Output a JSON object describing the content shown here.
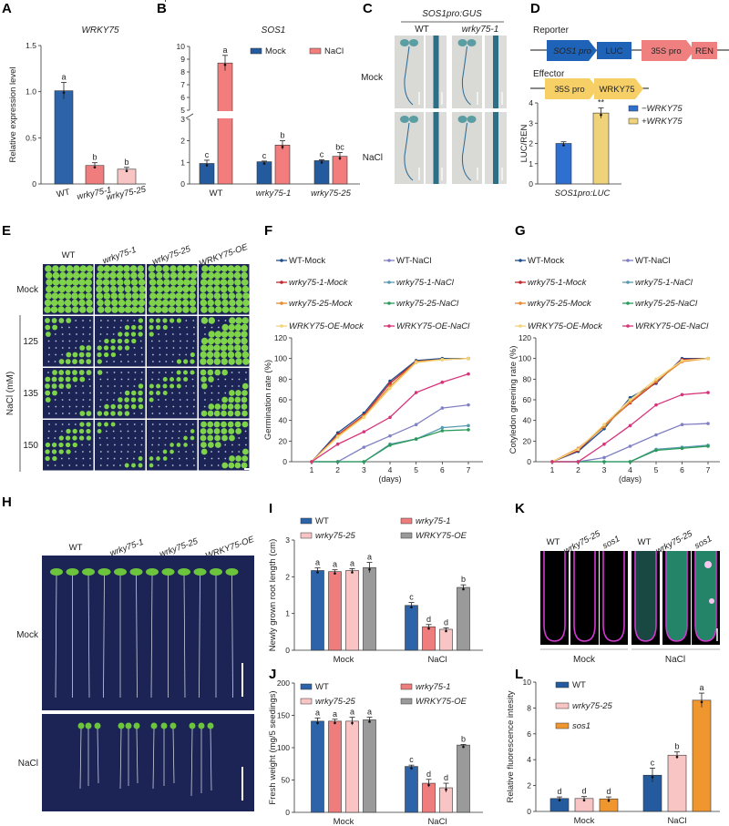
{
  "panel_labels": [
    "A",
    "B",
    "C",
    "D",
    "E",
    "F",
    "G",
    "H",
    "I",
    "J",
    "K",
    "L"
  ],
  "panel_c": {
    "title": "SOS1pro:GUS",
    "columns": [
      "WT",
      "wrky75-1"
    ],
    "rows": [
      "Mock",
      "NaCl"
    ]
  },
  "panel_d": {
    "reporter_label": "Reporter",
    "effector_label": "Effector",
    "reporter_parts": [
      "SOS1 pro",
      "LUC",
      "35S pro",
      "REN"
    ],
    "effector_parts": [
      "35S pro",
      "WRKY75"
    ]
  },
  "panel_e": {
    "columns": [
      "WT",
      "wrky75-1",
      "wrky75-25",
      "WRKY75-OE"
    ],
    "rows": [
      "Mock",
      "125",
      "135",
      "150"
    ],
    "axis_label": "NaCl (mM)"
  },
  "panel_h": {
    "columns": [
      "WT",
      "wrky75-1",
      "wrky75-25",
      "WRKY75-OE"
    ],
    "rows": [
      "Mock",
      "NaCl"
    ]
  },
  "panel_k": {
    "columns": [
      "WT",
      "wrky75-25",
      "sos1"
    ],
    "groups": [
      "Mock",
      "NaCl"
    ]
  },
  "chart_data": [
    {
      "id": "A",
      "type": "bar",
      "title": "WRKY75",
      "xlabel": "",
      "ylabel": "Relative expression level",
      "ylim": [
        0,
        1.5
      ],
      "yticks": [
        0,
        0.5,
        1.0,
        1.5
      ],
      "ytick_labels": [
        "0",
        "0.5",
        "1.0",
        "1.5"
      ],
      "categories": [
        "WT",
        "wrky75-1",
        "wrky75-25"
      ],
      "series": [
        {
          "name": "",
          "values": [
            1.01,
            0.2,
            0.16
          ],
          "errors": [
            0.09,
            0.03,
            0.02
          ],
          "letters": [
            "a",
            "b",
            "b"
          ],
          "colors": [
            "#2d63a8",
            "#f07d7d",
            "#f8c4c4"
          ]
        }
      ]
    },
    {
      "id": "B",
      "type": "bar",
      "title": "SOS1",
      "xlabel": "",
      "ylabel": "Relative expression level",
      "ylim": [
        0,
        10
      ],
      "axis_break": [
        3,
        5
      ],
      "yticks": [
        0,
        1,
        2,
        3,
        5,
        6,
        7,
        8,
        9,
        10
      ],
      "ytick_labels": [
        "0",
        "1",
        "2",
        "3",
        "5",
        "6",
        "7",
        "8",
        "9",
        "10"
      ],
      "categories": [
        "WT",
        "wrky75-1",
        "wrky75-25"
      ],
      "legend": "top-right",
      "series": [
        {
          "name": "Mock",
          "color": "#245a9e",
          "values": [
            0.95,
            1.03,
            1.08
          ],
          "errors": [
            0.15,
            0.03,
            0.04
          ],
          "letters": [
            "c",
            "c",
            "c"
          ]
        },
        {
          "name": "NaCl",
          "color": "#f37c7c",
          "values": [
            8.7,
            1.8,
            1.28
          ],
          "errors": [
            0.6,
            0.2,
            0.18
          ],
          "letters": [
            "a",
            "b",
            "bc"
          ]
        }
      ]
    },
    {
      "id": "D",
      "type": "bar",
      "title": "",
      "xlabel": "",
      "ylabel": "LUC/REN",
      "ylim": [
        0,
        4
      ],
      "yticks": [
        0,
        1,
        2,
        3,
        4
      ],
      "ytick_labels": [
        "0",
        "1",
        "2",
        "3",
        "4"
      ],
      "categories": [
        "SOS1pro:LUC"
      ],
      "legend": "right",
      "series": [
        {
          "name": "−WRKY75",
          "color": "#2f6fd0",
          "values": [
            2.0
          ],
          "errors": [
            0.08
          ],
          "letters": [
            ""
          ]
        },
        {
          "name": "+WRKY75",
          "color": "#efd27a",
          "values": [
            3.5
          ],
          "errors": [
            0.25
          ],
          "letters": [
            "**"
          ]
        }
      ]
    },
    {
      "id": "F",
      "type": "line",
      "title": "",
      "xlabel": "(days)",
      "ylabel": "Germination rate (%)",
      "x": [
        1,
        2,
        3,
        4,
        5,
        6,
        7
      ],
      "ylim": [
        0,
        120
      ],
      "yticks": [
        0,
        20,
        40,
        60,
        80,
        100,
        120
      ],
      "legend": "top",
      "series": [
        {
          "name": "WT-Mock",
          "color": "#1f4e8c",
          "values": [
            0,
            28,
            47,
            78,
            98,
            100,
            100
          ]
        },
        {
          "name": "WT-NaCl",
          "color": "#8080c4",
          "values": [
            0,
            0,
            14,
            25,
            36,
            52,
            55
          ]
        },
        {
          "name": "wrky75-1-Mock",
          "color": "#c0272d",
          "values": [
            0,
            26,
            45,
            76,
            97,
            99,
            100
          ]
        },
        {
          "name": "wrky75-1-NaCl",
          "color": "#5a9ab0",
          "values": [
            0,
            0,
            0,
            17,
            22,
            33,
            35
          ]
        },
        {
          "name": "wrky75-25-Mock",
          "color": "#e88a2e",
          "values": [
            0,
            25,
            44,
            73,
            97,
            99,
            100
          ]
        },
        {
          "name": "wrky75-25-NaCl",
          "color": "#2a9a5a",
          "values": [
            0,
            0,
            0,
            16,
            22,
            30,
            31
          ]
        },
        {
          "name": "WRKY75-OE-Mock",
          "color": "#f2d479",
          "values": [
            0,
            24,
            43,
            71,
            96,
            99,
            100
          ]
        },
        {
          "name": "WRKY75-OE-NaCl",
          "color": "#d6337a",
          "values": [
            0,
            17,
            29,
            43,
            67,
            77,
            85
          ]
        }
      ]
    },
    {
      "id": "G",
      "type": "line",
      "title": "",
      "xlabel": "(days)",
      "ylabel": "Cotyledon greening rate (%)",
      "x": [
        1,
        2,
        3,
        4,
        5,
        6,
        7
      ],
      "ylim": [
        0,
        120
      ],
      "yticks": [
        0,
        20,
        40,
        60,
        80,
        100,
        120
      ],
      "legend": "top",
      "series": [
        {
          "name": "WT-Mock",
          "color": "#1f4e8c",
          "values": [
            0,
            10,
            32,
            62,
            76,
            100,
            100
          ]
        },
        {
          "name": "WT-NaCl",
          "color": "#8080c4",
          "values": [
            0,
            0,
            4,
            15,
            26,
            36,
            37
          ]
        },
        {
          "name": "wrky75-1-Mock",
          "color": "#c0272d",
          "values": [
            0,
            11,
            35,
            57,
            77,
            99,
            100
          ]
        },
        {
          "name": "wrky75-1-NaCl",
          "color": "#5a9ab0",
          "values": [
            0,
            0,
            0,
            0,
            12,
            14,
            16
          ]
        },
        {
          "name": "wrky75-25-Mock",
          "color": "#e88a2e",
          "values": [
            0,
            13,
            34,
            58,
            78,
            97,
            100
          ]
        },
        {
          "name": "wrky75-25-NaCl",
          "color": "#2a9a5a",
          "values": [
            0,
            0,
            0,
            0,
            11,
            13,
            15
          ]
        },
        {
          "name": "WRKY75-OE-Mock",
          "color": "#f2d479",
          "values": [
            0,
            12,
            36,
            60,
            80,
            98,
            100
          ]
        },
        {
          "name": "WRKY75-OE-NaCl",
          "color": "#d6337a",
          "values": [
            0,
            0,
            17,
            35,
            55,
            65,
            67
          ]
        }
      ]
    },
    {
      "id": "I",
      "type": "bar",
      "title": "",
      "xlabel": "",
      "ylabel": "Newly grown root length (cm)",
      "ylim": [
        0,
        3
      ],
      "yticks": [
        0,
        1,
        2,
        3
      ],
      "ytick_labels": [
        "0",
        "1",
        "2",
        "3"
      ],
      "categories": [
        "Mock",
        "NaCl"
      ],
      "legend": "top",
      "series": [
        {
          "name": "WT",
          "color": "#2d63a8",
          "values": [
            2.17,
            1.22
          ],
          "errors": [
            0.07,
            0.08
          ],
          "letters": [
            "a",
            "c"
          ]
        },
        {
          "name": "wrky75-1",
          "color": "#f07d7d",
          "values": [
            2.14,
            0.64
          ],
          "errors": [
            0.05,
            0.06
          ],
          "letters": [
            "a",
            "d"
          ]
        },
        {
          "name": "wrky75-25",
          "color": "#f8c4c4",
          "values": [
            2.17,
            0.57
          ],
          "errors": [
            0.05,
            0.04
          ],
          "letters": [
            "a",
            "d"
          ]
        },
        {
          "name": "WRKY75-OE",
          "color": "#9a9a9a",
          "values": [
            2.25,
            1.71
          ],
          "errors": [
            0.14,
            0.07
          ],
          "letters": [
            "a",
            "b"
          ]
        }
      ]
    },
    {
      "id": "J",
      "type": "bar",
      "title": "",
      "xlabel": "",
      "ylabel": "Fresh weight (mg/5 seedings)",
      "ylim": [
        0,
        200
      ],
      "yticks": [
        0,
        50,
        100,
        150,
        200
      ],
      "ytick_labels": [
        "0",
        "50",
        "100",
        "150",
        "200"
      ],
      "categories": [
        "Mock",
        "NaCl"
      ],
      "legend": "top",
      "series": [
        {
          "name": "WT",
          "color": "#2d63a8",
          "values": [
            141,
            71
          ],
          "errors": [
            5,
            2
          ],
          "letters": [
            "a",
            "c"
          ]
        },
        {
          "name": "wrky75-1",
          "color": "#f07d7d",
          "values": [
            141,
            45
          ],
          "errors": [
            3,
            6
          ],
          "letters": [
            "a",
            "d"
          ]
        },
        {
          "name": "wrky75-25",
          "color": "#f8c4c4",
          "values": [
            141,
            38
          ],
          "errors": [
            6,
            7
          ],
          "letters": [
            "a",
            "d"
          ]
        },
        {
          "name": "WRKY75-OE",
          "color": "#9a9a9a",
          "values": [
            143,
            104
          ],
          "errors": [
            4,
            1
          ],
          "letters": [
            "a",
            "b"
          ]
        }
      ]
    },
    {
      "id": "L",
      "type": "bar",
      "title": "",
      "xlabel": "",
      "ylabel": "Relative fluorescence intesity",
      "ylim": [
        0,
        10
      ],
      "yticks": [
        0,
        2,
        4,
        6,
        8,
        10
      ],
      "ytick_labels": [
        "0",
        "2",
        "4",
        "6",
        "8",
        "10"
      ],
      "categories": [
        "Mock",
        "NaCl"
      ],
      "legend": "top-left",
      "series": [
        {
          "name": "WT",
          "color": "#245a9e",
          "values": [
            1.0,
            2.8
          ],
          "errors": [
            0.12,
            0.55
          ],
          "letters": [
            "d",
            "c"
          ]
        },
        {
          "name": "wrky75-25",
          "color": "#f8c4c4",
          "values": [
            1.0,
            4.35
          ],
          "errors": [
            0.15,
            0.25
          ],
          "letters": [
            "d",
            "b"
          ]
        },
        {
          "name": "sos1",
          "color": "#f0962f",
          "values": [
            0.97,
            8.6
          ],
          "errors": [
            0.15,
            0.55
          ],
          "letters": [
            "d",
            "a"
          ]
        }
      ]
    }
  ]
}
